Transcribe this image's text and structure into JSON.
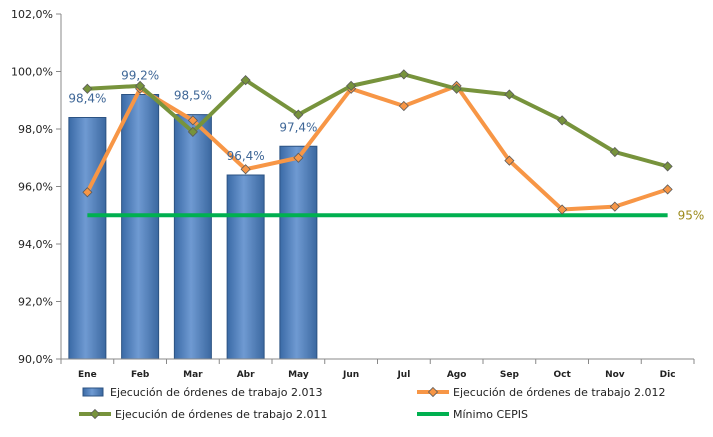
{
  "chart_data": {
    "type": "bar",
    "categories": [
      "Ene",
      "Feb",
      "Mar",
      "Abr",
      "May",
      "Jun",
      "Jul",
      "Ago",
      "Sep",
      "Oct",
      "Nov",
      "Dic"
    ],
    "ylim": [
      90,
      102
    ],
    "yticks": [
      "90,0%",
      "92,0%",
      "94,0%",
      "96,0%",
      "98,0%",
      "100,0%",
      "102,0%"
    ],
    "grid": false,
    "legend_position": "bottom",
    "bar_series": {
      "name": "Ejecución de órdenes de trabajo 2.013",
      "values": [
        98.4,
        99.2,
        98.5,
        96.4,
        97.4
      ],
      "labels": [
        "98,4%",
        "99,2%",
        "98,5%",
        "96,4%",
        "97,4%"
      ],
      "color": "#4f81bd"
    },
    "line_series": [
      {
        "name": "Ejecución de órdenes de trabajo 2.012",
        "values": [
          95.8,
          99.4,
          98.3,
          96.6,
          97.0,
          99.4,
          98.8,
          99.5,
          96.9,
          95.2,
          95.3,
          95.9
        ],
        "color": "#f79646"
      },
      {
        "name": "Ejecución de órdenes de trabajo 2.011",
        "values": [
          99.4,
          99.5,
          97.9,
          99.7,
          98.5,
          99.5,
          99.9,
          99.4,
          99.2,
          98.3,
          97.2,
          96.7
        ],
        "color": "#77933c"
      }
    ],
    "reference_line": {
      "name": "Mínimo CEPIS",
      "value": 95,
      "label": "95%",
      "color": "#00b050"
    }
  }
}
